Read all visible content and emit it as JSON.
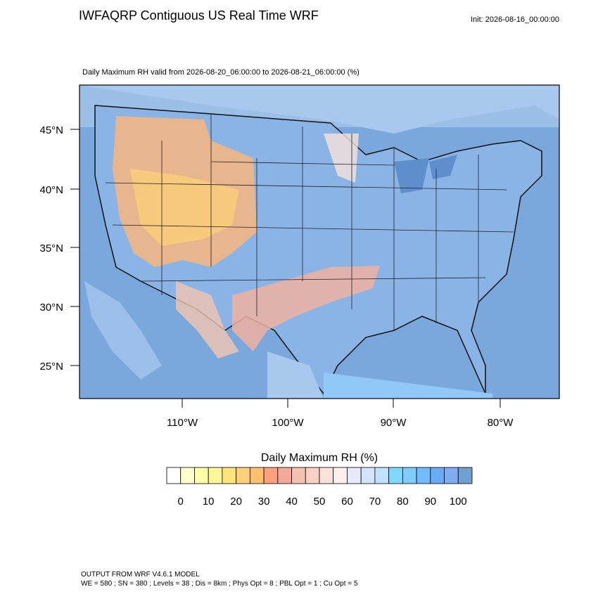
{
  "header": {
    "title": "IWFAQRP Contiguous US Real Time WRF",
    "init": "Init: 2026-08-16_00:00:00",
    "subtitle": "Daily Maximum RH valid from 2026-08-20_06:00:00 to 2026-08-21_06:00:00   (%)"
  },
  "map": {
    "lat_labels": [
      "45°N",
      "40°N",
      "35°N",
      "30°N",
      "25°N"
    ],
    "lon_labels": [
      "110°W",
      "100°W",
      "90°W",
      "80°W"
    ]
  },
  "colorbar": {
    "title": "Daily Maximum RH  (%)",
    "colors": [
      "#ffffff",
      "#ffffd0",
      "#ffffa8",
      "#fff59a",
      "#ffe47a",
      "#ffd07a",
      "#ffc070",
      "#ffa080",
      "#f4a898",
      "#f4c0b0",
      "#f8d0c4",
      "#fbe2d8",
      "#fff0f0",
      "#e8eaff",
      "#d4e4ff",
      "#c0e2ff",
      "#80d8ff",
      "#80ccff",
      "#70bcff",
      "#68acf4",
      "#80acf0",
      "#70a0d0"
    ],
    "labels": [
      0,
      10,
      20,
      30,
      40,
      50,
      60,
      70,
      80,
      90,
      100
    ]
  },
  "footer": {
    "line1": "OUTPUT FROM WRF V4.6.1 MODEL",
    "line2": "WE = 580 ; SN = 380 ; Levels = 38 ; Dis = 8km ; Phys Opt = 8 ; PBL Opt = 1 ; Cu Opt = 5"
  }
}
